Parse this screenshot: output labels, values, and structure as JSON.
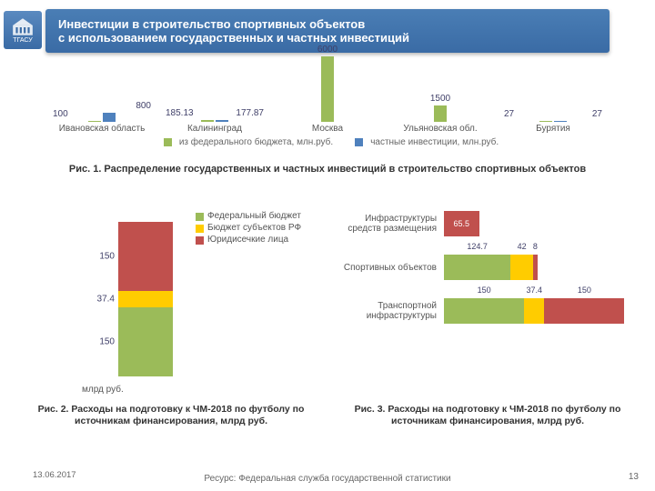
{
  "header": {
    "line1": "Инвестиции в строительство спортивных объектов",
    "line2": "с использованием государственных и частных инвестиций"
  },
  "logo": {
    "text": "ТГАСУ"
  },
  "colors": {
    "federal": "#9bbb59",
    "private": "#4f81bd",
    "subject": "#ffcc00",
    "legal": "#c0504d",
    "header_bg": "#3f74aa",
    "text": "#404069"
  },
  "chart1": {
    "type": "grouped-bar",
    "max": 6000,
    "categories": [
      "Ивановская область",
      "Калининград",
      "Москва",
      "Ульяновская обл.",
      "Бурятия"
    ],
    "series": [
      {
        "name": "из федерального бюджета, млн.руб.",
        "color": "#9bbb59",
        "values": [
          100,
          185.13,
          6000,
          1500,
          27
        ]
      },
      {
        "name": "частные инвестиции, млн.руб.",
        "color": "#4f81bd",
        "values": [
          800,
          177.87,
          null,
          null,
          27
        ]
      }
    ],
    "legend": [
      "из федерального бюджета, млн.руб.",
      "частные инвестиции, млн.руб."
    ]
  },
  "caption1": "Рис. 1. Распределение государственных и частных инвестиций в строительство спортивных объектов",
  "chart2": {
    "type": "stacked-column",
    "xlabel": "млрд руб.",
    "segments": [
      {
        "label": "150",
        "value": 150,
        "color": "#9bbb59"
      },
      {
        "label": "37.4",
        "value": 37.4,
        "color": "#ffcc00"
      },
      {
        "label": "150",
        "value": 150,
        "color": "#c0504d"
      }
    ],
    "legend": [
      {
        "color": "#9bbb59",
        "text": "Федеральный бюджет"
      },
      {
        "color": "#ffcc00",
        "text": "Бюджет субъектов РФ"
      },
      {
        "color": "#c0504d",
        "text": "Юридисечкие лица"
      }
    ]
  },
  "caption2": "Рис. 2. Расходы на подготовку к ЧМ-2018 по футболу по источникам финансирования, млрд руб.",
  "chart3": {
    "type": "stacked-hbar",
    "max": 340,
    "rows": [
      {
        "label": "Инфраструктуры средств размещения",
        "segments": [
          {
            "v": 65.5,
            "c": "#c0504d",
            "highlight": true
          }
        ]
      },
      {
        "label": "Спортивных объектов",
        "segments": [
          {
            "v": 124.7,
            "c": "#9bbb59"
          },
          {
            "v": 42,
            "c": "#ffcc00"
          },
          {
            "v": 8,
            "c": "#c0504d"
          }
        ]
      },
      {
        "label": "Транспортной инфраструктуры",
        "segments": [
          {
            "v": 150,
            "c": "#9bbb59"
          },
          {
            "v": 37.4,
            "c": "#ffcc00"
          },
          {
            "v": 150,
            "c": "#c0504d"
          }
        ]
      }
    ]
  },
  "caption3": "Рис. 3. Расходы на подготовку к ЧМ-2018 по футболу по источникам финансирования, млрд руб.",
  "footer": {
    "date": "13.06.2017",
    "source": "Ресурс: Федеральная служба государственной статистики",
    "page": "13"
  }
}
